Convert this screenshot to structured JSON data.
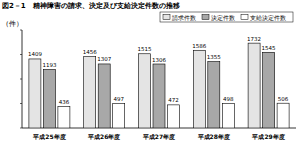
{
  "chart_data": {
    "type": "bar",
    "title": "図2－1　精神障害の請求、決定及び支給決定件数の推移",
    "y_label": "（件）",
    "categories": [
      "平成25年度",
      "平成26年度",
      "平成27年度",
      "平成28年度",
      "平成29年度"
    ],
    "series": [
      {
        "name": "請求件数",
        "color": "#e4e4e4",
        "values": [
          1409,
          1456,
          1515,
          1586,
          1732
        ]
      },
      {
        "name": "決定件数",
        "color": "#a8a8a8",
        "values": [
          1193,
          1307,
          1306,
          1355,
          1545
        ]
      },
      {
        "name": "支給決定件数",
        "color": "#ffffff",
        "values": [
          436,
          497,
          472,
          498,
          506
        ]
      }
    ],
    "ylim": [
      0,
      2000
    ],
    "yticks": [
      0,
      500,
      1000,
      1500,
      2000
    ],
    "grid": false,
    "legend": "top-right",
    "data_labels": true,
    "tick_labels": "x"
  }
}
